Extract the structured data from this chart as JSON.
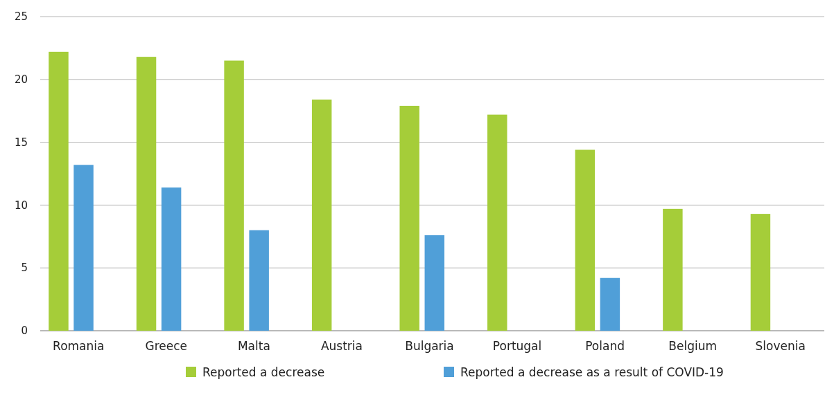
{
  "chart_data": {
    "type": "bar",
    "categories": [
      "Romania",
      "Greece",
      "Malta",
      "Austria",
      "Bulgaria",
      "Portugal",
      "Poland",
      "Belgium",
      "Slovenia"
    ],
    "series": [
      {
        "name": "Reported a decrease",
        "color": "#a5cd39",
        "values": [
          22.2,
          21.8,
          21.5,
          18.4,
          17.9,
          17.2,
          14.4,
          9.7,
          9.3
        ]
      },
      {
        "name": "Reported a decrease as a result of COVID-19",
        "color": "#509fd8",
        "values": [
          13.2,
          11.4,
          8.0,
          null,
          7.6,
          null,
          4.2,
          null,
          null
        ]
      }
    ],
    "ylim": [
      0,
      25
    ],
    "yticks": [
      0,
      5,
      10,
      15,
      20,
      25
    ],
    "grid": "y",
    "legend": "bottom"
  }
}
